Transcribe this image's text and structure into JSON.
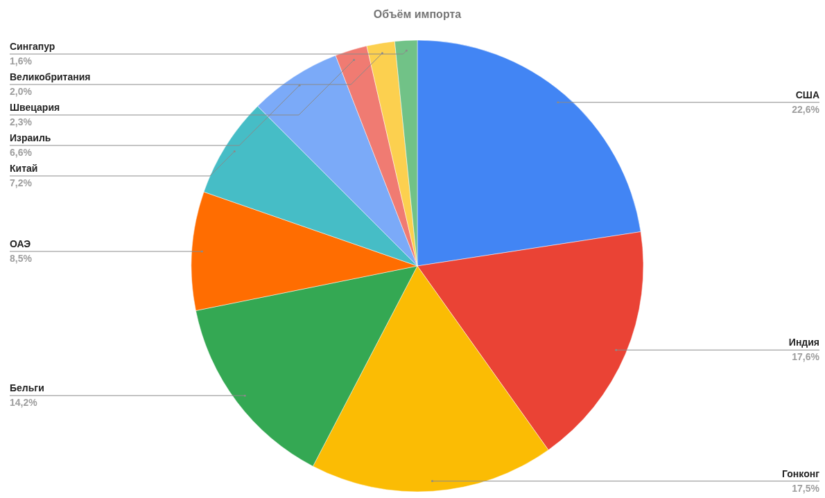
{
  "chart_data": {
    "type": "pie",
    "title": "Объём импорта",
    "categories": [
      "США",
      "Индия",
      "Гонконг",
      "Бельги",
      "ОАЭ",
      "Китай",
      "Израиль",
      "Швецария",
      "Великобритания",
      "Сингапур"
    ],
    "values": [
      22.6,
      17.6,
      17.5,
      14.2,
      8.5,
      7.2,
      6.6,
      2.3,
      2.0,
      1.6
    ],
    "colors": [
      "#4285f4",
      "#ea4335",
      "#fbbc04",
      "#34a853",
      "#ff6d01",
      "#46bdc6",
      "#7baaf8",
      "#f07b72",
      "#fcd04f",
      "#71c287"
    ],
    "value_labels": [
      "22,6%",
      "17,6%",
      "17,5%",
      "14,2%",
      "8,5%",
      "7,2%",
      "6,6%",
      "2,3%",
      "2,0%",
      "1,6%"
    ]
  }
}
